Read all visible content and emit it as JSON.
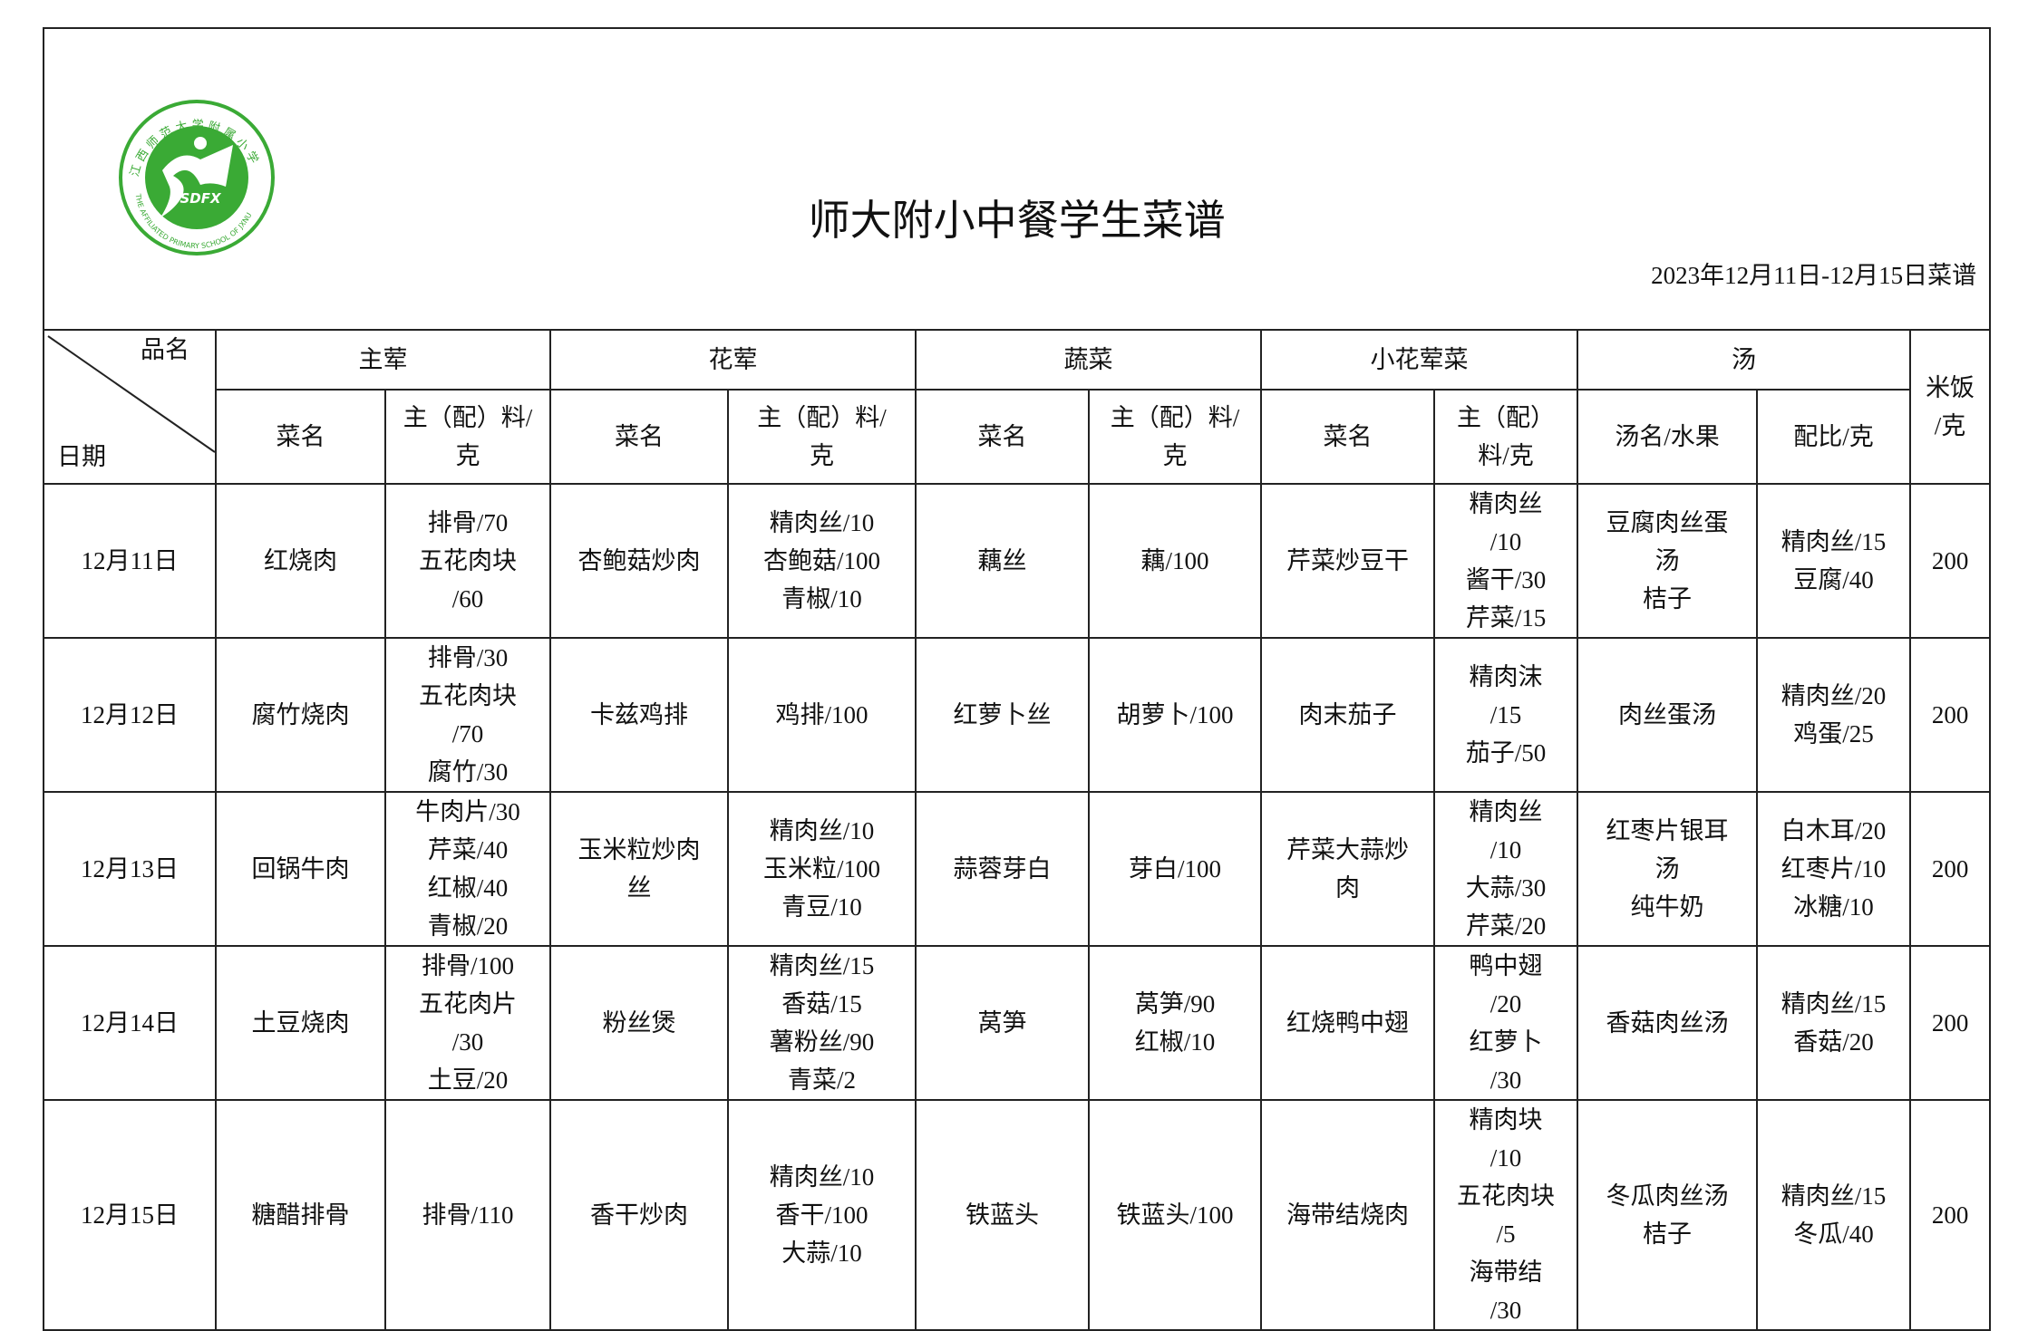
{
  "logo": {
    "text_cn": "江西师范大学附属小学",
    "text_en": "THE AFFILIATED PRIMARY SCHOOL OF JXNU",
    "mark": "SDFX",
    "color": "#3aaa35"
  },
  "title": "师大附小中餐学生菜谱",
  "date_range": "2023年12月11日-12月15日菜谱",
  "header": {
    "item_label": "品名",
    "date_label": "日期",
    "groups": [
      "主荤",
      "花荤",
      "蔬菜",
      "小花荤菜",
      "汤"
    ],
    "rice": "米饭\n/克",
    "sub": {
      "dish": "菜名",
      "ingredients": "主（配）料/\n克",
      "ingredients_small": "主（配）\n料/克",
      "soup_name": "汤名/水果",
      "ratio": "配比/克"
    }
  },
  "days": [
    {
      "date": "12月11日",
      "main": {
        "dish": "红烧肉",
        "ing": "排骨/70\n五花肉块\n/60"
      },
      "meat": {
        "dish": "杏鲍菇炒肉",
        "ing": "精肉丝/10\n杏鲍菇/100\n青椒/10"
      },
      "veg": {
        "dish": "藕丝",
        "ing": "藕/100"
      },
      "small": {
        "dish": "芹菜炒豆干",
        "ing": "精肉丝\n/10\n酱干/30\n芹菜/15"
      },
      "soup": {
        "name": "豆腐肉丝蛋\n汤\n桔子",
        "ratio": "精肉丝/15\n豆腐/40"
      },
      "rice": "200"
    },
    {
      "date": "12月12日",
      "main": {
        "dish": "腐竹烧肉",
        "ing": "排骨/30\n五花肉块\n/70\n腐竹/30"
      },
      "meat": {
        "dish": "卡兹鸡排",
        "ing": "鸡排/100"
      },
      "veg": {
        "dish": "红萝卜丝",
        "ing": "胡萝卜/100"
      },
      "small": {
        "dish": "肉末茄子",
        "ing": "精肉沫\n/15\n茄子/50"
      },
      "soup": {
        "name": "肉丝蛋汤",
        "ratio": "精肉丝/20\n鸡蛋/25"
      },
      "rice": "200"
    },
    {
      "date": "12月13日",
      "main": {
        "dish": "回锅牛肉",
        "ing": "牛肉片/30\n芹菜/40\n红椒/40\n青椒/20"
      },
      "meat": {
        "dish": "玉米粒炒肉\n丝",
        "ing": "精肉丝/10\n玉米粒/100\n青豆/10"
      },
      "veg": {
        "dish": "蒜蓉芽白",
        "ing": "芽白/100"
      },
      "small": {
        "dish": "芹菜大蒜炒\n肉",
        "ing": "精肉丝\n/10\n大蒜/30\n芹菜/20"
      },
      "soup": {
        "name": "红枣片银耳\n汤\n纯牛奶",
        "ratio": "白木耳/20\n红枣片/10\n冰糖/10"
      },
      "rice": "200"
    },
    {
      "date": "12月14日",
      "main": {
        "dish": "土豆烧肉",
        "ing": "排骨/100\n五花肉片\n/30\n土豆/20"
      },
      "meat": {
        "dish": "粉丝煲",
        "ing": "精肉丝/15\n香菇/15\n薯粉丝/90\n青菜/2"
      },
      "veg": {
        "dish": "莴笋",
        "ing": "莴笋/90\n红椒/10"
      },
      "small": {
        "dish": "红烧鸭中翅",
        "ing": "鸭中翅\n/20\n红萝卜\n/30"
      },
      "soup": {
        "name": "香菇肉丝汤",
        "ratio": "精肉丝/15\n香菇/20"
      },
      "rice": "200"
    },
    {
      "date": "12月15日",
      "main": {
        "dish": "糖醋排骨",
        "ing": "排骨/110"
      },
      "meat": {
        "dish": "香干炒肉",
        "ing": "精肉丝/10\n香干/100\n大蒜/10"
      },
      "veg": {
        "dish": "铁蓝头",
        "ing": "铁蓝头/100"
      },
      "small": {
        "dish": "海带结烧肉",
        "ing": "精肉块\n/10\n五花肉块\n/5\n海带结\n/30"
      },
      "soup": {
        "name": "冬瓜肉丝汤\n桔子",
        "ratio": "精肉丝/15\n冬瓜/40"
      },
      "rice": "200"
    }
  ]
}
